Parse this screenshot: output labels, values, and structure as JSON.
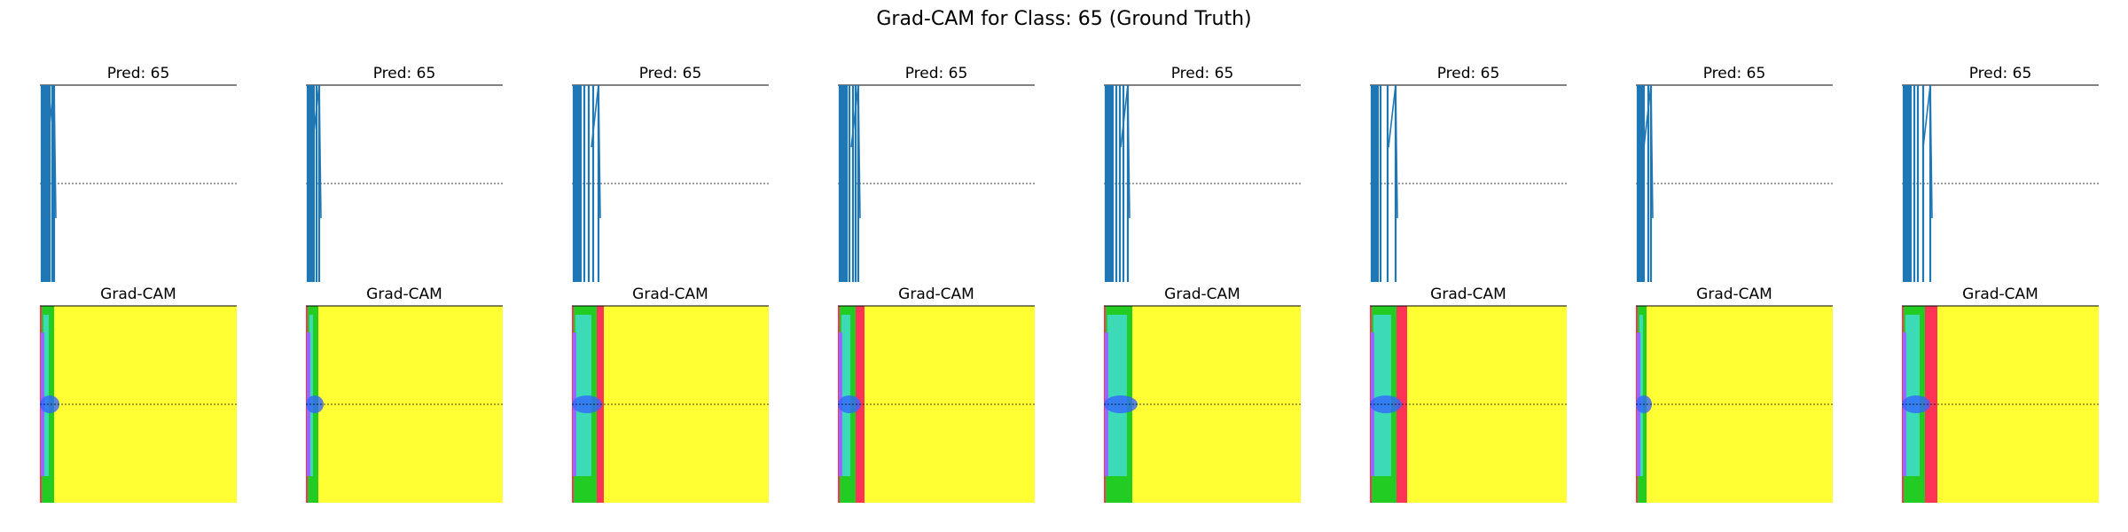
{
  "figure": {
    "title": "Grad-CAM for Class: 65 (Ground Truth)"
  },
  "colors": {
    "signal": "#1f77b4",
    "heat_background": "#ffff33",
    "heat_hot": "#ff3355",
    "heat_cool": "#22cc22",
    "heat_cyan": "#44dddd",
    "heat_blue": "#3366ff",
    "heat_violet": "#9966ff"
  },
  "chart_data": [
    {
      "type": "line",
      "panels": [
        {
          "index": 1,
          "title": "Pred: 65"
        },
        {
          "index": 2,
          "title": "Pred: 65"
        },
        {
          "index": 3,
          "title": "Pred: 65"
        },
        {
          "index": 4,
          "title": "Pred: 65"
        },
        {
          "index": 5,
          "title": "Pred: 65"
        },
        {
          "index": 6,
          "title": "Pred: 65"
        },
        {
          "index": 7,
          "title": "Pred: 65"
        },
        {
          "index": 8,
          "title": "Pred: 65"
        }
      ]
    },
    {
      "type": "heatmap",
      "panels": [
        {
          "index": 1,
          "title": "Grad-CAM"
        },
        {
          "index": 2,
          "title": "Grad-CAM"
        },
        {
          "index": 3,
          "title": "Grad-CAM"
        },
        {
          "index": 4,
          "title": "Grad-CAM"
        },
        {
          "index": 5,
          "title": "Grad-CAM"
        },
        {
          "index": 6,
          "title": "Grad-CAM"
        },
        {
          "index": 7,
          "title": "Grad-CAM"
        },
        {
          "index": 8,
          "title": "Grad-CAM"
        }
      ]
    }
  ]
}
